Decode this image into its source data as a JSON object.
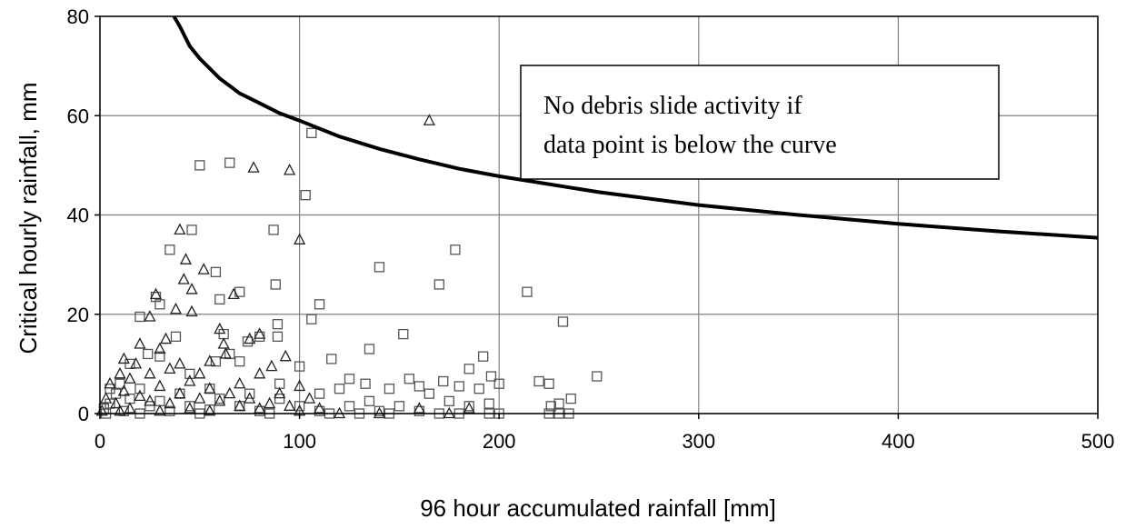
{
  "chart_data": {
    "type": "scatter",
    "title": "",
    "xlabel": "96 hour accumulated  rainfall [mm]",
    "ylabel": "Critical hourly rainfall, mm",
    "xlim": [
      0,
      500
    ],
    "ylim": [
      0,
      80
    ],
    "x_ticks": [
      "0",
      "100",
      "200",
      "300",
      "400",
      "500"
    ],
    "y_ticks": [
      "0",
      "20",
      "40",
      "60",
      "80"
    ],
    "grid": true,
    "annotation": {
      "lines": [
        "No debris slide activity if",
        "data point is below the curve"
      ]
    },
    "curve": {
      "x": [
        37,
        40,
        45,
        50,
        60,
        70,
        80,
        90,
        100,
        120,
        140,
        160,
        180,
        200,
        250,
        300,
        350,
        400,
        450,
        500
      ],
      "y": [
        80,
        78,
        74,
        71.5,
        67.5,
        64.5,
        62.5,
        60.5,
        59,
        55.8,
        53.3,
        51.2,
        49.3,
        47.8,
        44.6,
        42,
        40,
        38.2,
        36.7,
        35.4
      ]
    },
    "series": [
      {
        "marker": "square",
        "points": [
          [
            50,
            50
          ],
          [
            65,
            50.5
          ],
          [
            106,
            56.5
          ],
          [
            103,
            44
          ],
          [
            87,
            37
          ],
          [
            46,
            37
          ],
          [
            35,
            33
          ],
          [
            178,
            33
          ],
          [
            140,
            29.5
          ],
          [
            58,
            28.5
          ],
          [
            170,
            26
          ],
          [
            88,
            26
          ],
          [
            70,
            24.5
          ],
          [
            214,
            24.5
          ],
          [
            28,
            23.5
          ],
          [
            60,
            23
          ],
          [
            110,
            22
          ],
          [
            30,
            22
          ],
          [
            106,
            19
          ],
          [
            89,
            18
          ],
          [
            232,
            18.5
          ],
          [
            20,
            19.5
          ],
          [
            152,
            16
          ],
          [
            62,
            16
          ],
          [
            89,
            15.5
          ],
          [
            80,
            15.5
          ],
          [
            38,
            15.5
          ],
          [
            74,
            14.5
          ],
          [
            135,
            13
          ],
          [
            65,
            12
          ],
          [
            24,
            12
          ],
          [
            30,
            11.5
          ],
          [
            192,
            11.5
          ],
          [
            116,
            11
          ],
          [
            58,
            10.5
          ],
          [
            70,
            10.5
          ],
          [
            15,
            10
          ],
          [
            100,
            9.5
          ],
          [
            185,
            9
          ],
          [
            45,
            8
          ],
          [
            196,
            7.5
          ],
          [
            249,
            7.5
          ],
          [
            125,
            7
          ],
          [
            155,
            7
          ],
          [
            172,
            6.5
          ],
          [
            220,
            6.5
          ],
          [
            225,
            6
          ],
          [
            10,
            6
          ],
          [
            90,
            6
          ],
          [
            133,
            6
          ],
          [
            160,
            5.5
          ],
          [
            180,
            5.5
          ],
          [
            200,
            6
          ],
          [
            5,
            5
          ],
          [
            20,
            5
          ],
          [
            55,
            5
          ],
          [
            120,
            5
          ],
          [
            145,
            5
          ],
          [
            190,
            5
          ],
          [
            8,
            4
          ],
          [
            40,
            4
          ],
          [
            75,
            4
          ],
          [
            110,
            4
          ],
          [
            165,
            4
          ],
          [
            236,
            3
          ],
          [
            230,
            2
          ],
          [
            226,
            1.5
          ],
          [
            15,
            3
          ],
          [
            30,
            2.5
          ],
          [
            60,
            3
          ],
          [
            90,
            3
          ],
          [
            135,
            2.5
          ],
          [
            175,
            2.5
          ],
          [
            195,
            2
          ],
          [
            5,
            2
          ],
          [
            25,
            1.5
          ],
          [
            45,
            1.5
          ],
          [
            70,
            1.5
          ],
          [
            100,
            1.5
          ],
          [
            125,
            1.5
          ],
          [
            150,
            1.5
          ],
          [
            185,
            1.5
          ],
          [
            2,
            1
          ],
          [
            12,
            0.5
          ],
          [
            35,
            0.5
          ],
          [
            55,
            0.8
          ],
          [
            80,
            0.5
          ],
          [
            110,
            0.5
          ],
          [
            140,
            0.5
          ],
          [
            160,
            0.5
          ],
          [
            200,
            0
          ],
          [
            225,
            0
          ],
          [
            230,
            0
          ],
          [
            235,
            0
          ],
          [
            3,
            0
          ],
          [
            20,
            0
          ],
          [
            50,
            0
          ],
          [
            85,
            0
          ],
          [
            115,
            0
          ],
          [
            130,
            0
          ],
          [
            145,
            0
          ],
          [
            170,
            0
          ],
          [
            180,
            0
          ],
          [
            195,
            0
          ]
        ]
      },
      {
        "marker": "triangle",
        "points": [
          [
            165,
            59
          ],
          [
            77,
            49.5
          ],
          [
            95,
            49
          ],
          [
            100,
            35
          ],
          [
            40,
            37
          ],
          [
            43,
            31
          ],
          [
            52,
            29
          ],
          [
            42,
            27
          ],
          [
            46,
            25
          ],
          [
            28,
            24
          ],
          [
            67,
            24
          ],
          [
            46,
            20.5
          ],
          [
            38,
            21
          ],
          [
            25,
            19.5
          ],
          [
            60,
            17
          ],
          [
            80,
            16
          ],
          [
            33,
            15
          ],
          [
            75,
            15
          ],
          [
            62,
            14
          ],
          [
            20,
            14
          ],
          [
            30,
            13
          ],
          [
            63,
            12
          ],
          [
            93,
            11.5
          ],
          [
            12,
            11
          ],
          [
            55,
            10.5
          ],
          [
            18,
            10
          ],
          [
            40,
            10
          ],
          [
            86,
            9.5
          ],
          [
            35,
            9
          ],
          [
            10,
            8
          ],
          [
            25,
            8
          ],
          [
            50,
            8
          ],
          [
            80,
            8
          ],
          [
            15,
            7
          ],
          [
            45,
            6.5
          ],
          [
            70,
            6
          ],
          [
            100,
            5.5
          ],
          [
            5,
            6
          ],
          [
            30,
            5.5
          ],
          [
            55,
            5
          ],
          [
            12,
            4.5
          ],
          [
            40,
            4
          ],
          [
            65,
            4
          ],
          [
            90,
            4
          ],
          [
            20,
            3.5
          ],
          [
            50,
            3
          ],
          [
            75,
            3
          ],
          [
            105,
            3
          ],
          [
            3,
            3
          ],
          [
            25,
            2.5
          ],
          [
            60,
            2.5
          ],
          [
            85,
            2
          ],
          [
            8,
            2
          ],
          [
            35,
            2
          ],
          [
            70,
            1.5
          ],
          [
            95,
            1.5
          ],
          [
            15,
            1
          ],
          [
            45,
            1
          ],
          [
            80,
            1
          ],
          [
            110,
            1
          ],
          [
            160,
            1
          ],
          [
            185,
            1
          ],
          [
            1,
            0.5
          ],
          [
            10,
            0.5
          ],
          [
            30,
            0.5
          ],
          [
            55,
            0.5
          ],
          [
            100,
            0.5
          ],
          [
            140,
            0
          ],
          [
            175,
            0
          ],
          [
            120,
            0
          ]
        ]
      }
    ]
  }
}
